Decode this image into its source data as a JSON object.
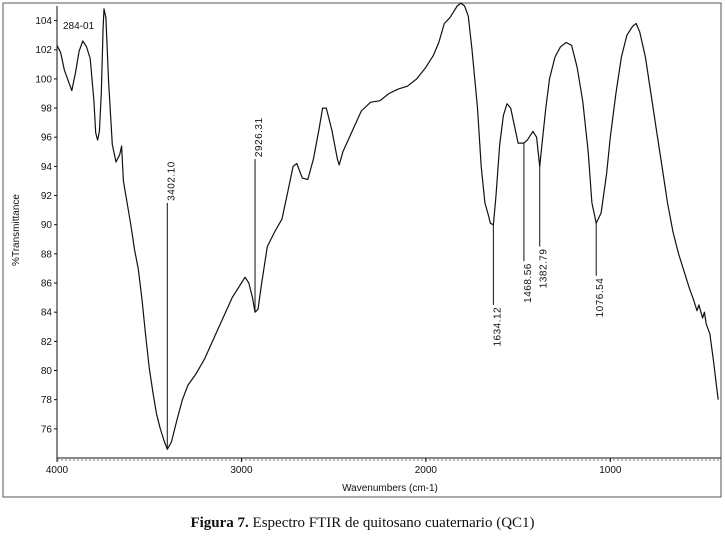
{
  "chart_data": {
    "type": "line",
    "sample_label": "284-01",
    "xlabel": "Wavenumbers (cm-1)",
    "ylabel": "%Transmittance",
    "xlim": [
      4000,
      400
    ],
    "ylim": [
      74,
      105
    ],
    "x_ticks": [
      4000,
      3000,
      2000,
      1000
    ],
    "y_ticks": [
      76,
      78,
      80,
      82,
      84,
      86,
      88,
      90,
      92,
      94,
      96,
      98,
      100,
      102,
      104
    ],
    "grid": false,
    "series": [
      {
        "points": [
          [
            4000,
            102.3
          ],
          [
            3980,
            101.8
          ],
          [
            3960,
            100.6
          ],
          [
            3940,
            99.9
          ],
          [
            3920,
            99.2
          ],
          [
            3900,
            100.4
          ],
          [
            3880,
            101.9
          ],
          [
            3860,
            102.6
          ],
          [
            3840,
            102.2
          ],
          [
            3820,
            101.4
          ],
          [
            3800,
            98.5
          ],
          [
            3790,
            96.3
          ],
          [
            3780,
            95.8
          ],
          [
            3770,
            96.4
          ],
          [
            3760,
            99.0
          ],
          [
            3750,
            103.5
          ],
          [
            3745,
            104.8
          ],
          [
            3735,
            104.2
          ],
          [
            3720,
            99.8
          ],
          [
            3700,
            95.5
          ],
          [
            3680,
            94.3
          ],
          [
            3660,
            94.8
          ],
          [
            3650,
            95.4
          ],
          [
            3640,
            93.0
          ],
          [
            3620,
            91.5
          ],
          [
            3600,
            90.0
          ],
          [
            3580,
            88.3
          ],
          [
            3560,
            87.0
          ],
          [
            3540,
            85.0
          ],
          [
            3520,
            82.5
          ],
          [
            3500,
            80.2
          ],
          [
            3480,
            78.5
          ],
          [
            3460,
            77.0
          ],
          [
            3440,
            76.0
          ],
          [
            3420,
            75.2
          ],
          [
            3402.1,
            74.6
          ],
          [
            3380,
            75.1
          ],
          [
            3350,
            76.6
          ],
          [
            3320,
            78.0
          ],
          [
            3290,
            79.0
          ],
          [
            3250,
            79.7
          ],
          [
            3200,
            80.8
          ],
          [
            3150,
            82.2
          ],
          [
            3100,
            83.6
          ],
          [
            3050,
            85.0
          ],
          [
            3000,
            86.0
          ],
          [
            2980,
            86.4
          ],
          [
            2960,
            86.0
          ],
          [
            2940,
            85.0
          ],
          [
            2926.31,
            84.0
          ],
          [
            2910,
            84.2
          ],
          [
            2890,
            86.0
          ],
          [
            2860,
            88.5
          ],
          [
            2820,
            89.5
          ],
          [
            2780,
            90.4
          ],
          [
            2750,
            92.2
          ],
          [
            2720,
            94.0
          ],
          [
            2700,
            94.2
          ],
          [
            2670,
            93.2
          ],
          [
            2640,
            93.1
          ],
          [
            2610,
            94.5
          ],
          [
            2580,
            96.5
          ],
          [
            2560,
            98.0
          ],
          [
            2540,
            98.0
          ],
          [
            2510,
            96.5
          ],
          [
            2480,
            94.5
          ],
          [
            2470,
            94.1
          ],
          [
            2450,
            95.0
          ],
          [
            2400,
            96.4
          ],
          [
            2350,
            97.8
          ],
          [
            2300,
            98.4
          ],
          [
            2250,
            98.5
          ],
          [
            2200,
            99.0
          ],
          [
            2150,
            99.3
          ],
          [
            2100,
            99.5
          ],
          [
            2050,
            100.0
          ],
          [
            2000,
            100.8
          ],
          [
            1960,
            101.6
          ],
          [
            1930,
            102.5
          ],
          [
            1900,
            103.8
          ],
          [
            1870,
            104.2
          ],
          [
            1850,
            104.6
          ],
          [
            1830,
            105.0
          ],
          [
            1810,
            105.2
          ],
          [
            1790,
            105.0
          ],
          [
            1770,
            104.3
          ],
          [
            1750,
            102.0
          ],
          [
            1720,
            98.0
          ],
          [
            1700,
            94.0
          ],
          [
            1680,
            91.5
          ],
          [
            1660,
            90.6
          ],
          [
            1650,
            90.1
          ],
          [
            1634.12,
            90.0
          ],
          [
            1620,
            92.0
          ],
          [
            1600,
            95.5
          ],
          [
            1580,
            97.5
          ],
          [
            1560,
            98.3
          ],
          [
            1540,
            98.0
          ],
          [
            1520,
            96.8
          ],
          [
            1500,
            95.6
          ],
          [
            1468.56,
            95.6
          ],
          [
            1450,
            95.8
          ],
          [
            1420,
            96.4
          ],
          [
            1400,
            96.0
          ],
          [
            1382.79,
            94.0
          ],
          [
            1370,
            95.6
          ],
          [
            1350,
            98.0
          ],
          [
            1330,
            100.0
          ],
          [
            1300,
            101.5
          ],
          [
            1270,
            102.2
          ],
          [
            1240,
            102.5
          ],
          [
            1210,
            102.3
          ],
          [
            1180,
            100.8
          ],
          [
            1150,
            98.5
          ],
          [
            1120,
            95.0
          ],
          [
            1100,
            91.5
          ],
          [
            1076.54,
            90.1
          ],
          [
            1050,
            90.8
          ],
          [
            1020,
            93.5
          ],
          [
            1000,
            96.0
          ],
          [
            970,
            99.0
          ],
          [
            940,
            101.5
          ],
          [
            910,
            103.0
          ],
          [
            880,
            103.6
          ],
          [
            860,
            103.8
          ],
          [
            840,
            103.2
          ],
          [
            810,
            101.5
          ],
          [
            780,
            99.0
          ],
          [
            750,
            96.5
          ],
          [
            720,
            94.0
          ],
          [
            690,
            91.5
          ],
          [
            660,
            89.5
          ],
          [
            630,
            88.0
          ],
          [
            600,
            86.8
          ],
          [
            570,
            85.6
          ],
          [
            550,
            84.9
          ],
          [
            530,
            84.1
          ],
          [
            520,
            84.5
          ],
          [
            500,
            83.6
          ],
          [
            490,
            84.0
          ],
          [
            480,
            83.2
          ],
          [
            460,
            82.5
          ],
          [
            440,
            80.6
          ],
          [
            425,
            79.0
          ],
          [
            415,
            78.0
          ]
        ]
      }
    ],
    "annotations": [
      {
        "text": "3402.10",
        "x": 3402.1,
        "y_top": 91.5
      },
      {
        "text": "2926.31",
        "x": 2926.31,
        "y_top": 94.5
      },
      {
        "text": "1634.12",
        "x": 1634.12,
        "y_top": 84.5
      },
      {
        "text": "1468.56",
        "x": 1468.56,
        "y_top": 87.5
      },
      {
        "text": "1382.79",
        "x": 1382.79,
        "y_top": 88.5
      },
      {
        "text": "1076.54",
        "x": 1076.54,
        "y_top": 86.5
      }
    ]
  },
  "caption": {
    "label": "Figura 7.",
    "text": " Espectro FTIR de quitosano cuaternario (QC1)"
  }
}
